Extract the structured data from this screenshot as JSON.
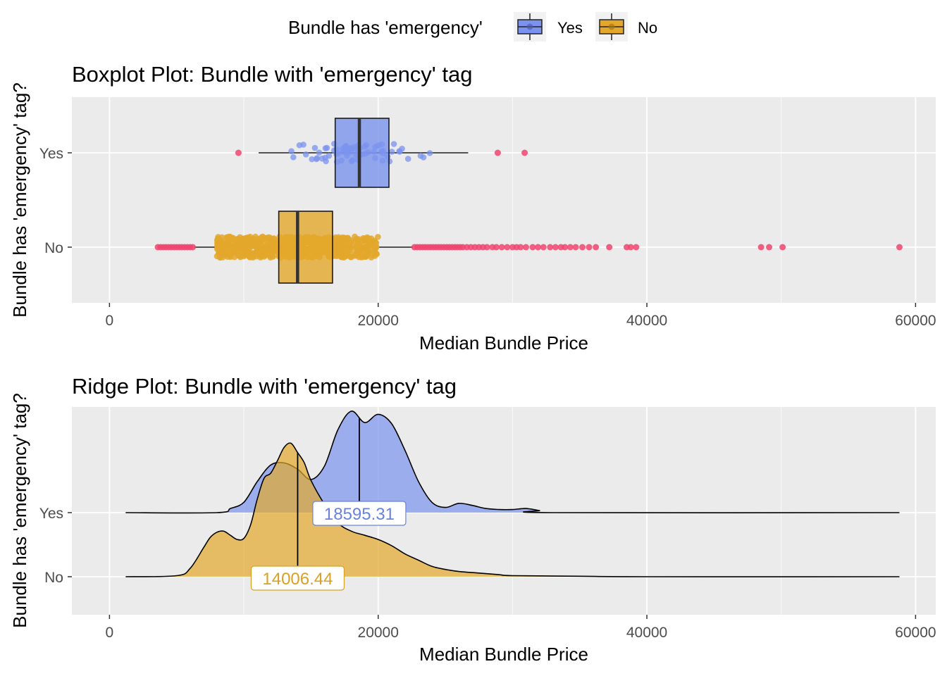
{
  "legend": {
    "title": "Bundle has 'emergency'",
    "placement": "top",
    "items": [
      {
        "label": "Yes",
        "color": "#7B93EE"
      },
      {
        "label": "No",
        "color": "#E3A82B"
      }
    ]
  },
  "colors": {
    "yes": "#7B93EE",
    "no": "#E3A82B",
    "outlier": "#F0446E",
    "panel": "#EBEBEB",
    "grid": "#FFFFFF",
    "label_yes": "#6A82E0",
    "label_no": "#D9A024"
  },
  "chart_data": [
    {
      "type": "boxplot",
      "title": "Boxplot Plot: Bundle with 'emergency' tag",
      "xlabel": "Median Bundle Price",
      "ylabel": "Bundle has 'emergency' tag?",
      "xlim": [
        -2800,
        61500
      ],
      "x_ticks": [
        0,
        20000,
        40000,
        60000
      ],
      "x_tick_labels": [
        "0",
        "20000",
        "40000",
        "60000"
      ],
      "categories": [
        "No",
        "Yes"
      ],
      "grid": true,
      "series": [
        {
          "name": "Yes",
          "whisker_low": 11100,
          "q1": 16800,
          "median": 18600,
          "q3": 20800,
          "whisker_high": 26700,
          "jitter_range": [
            13000,
            24300
          ],
          "outliers": [
            9600,
            28900,
            30900
          ]
        },
        {
          "name": "No",
          "whisker_low": 6300,
          "q1": 12600,
          "median": 14000,
          "q3": 16600,
          "whisker_high": 22600,
          "jitter_range": [
            8000,
            20000
          ],
          "outliers": [
            3600,
            3800,
            4000,
            4200,
            4400,
            4600,
            4800,
            5000,
            5200,
            5400,
            5600,
            5800,
            6000,
            6200,
            22700,
            22900,
            23100,
            23300,
            23500,
            23700,
            23900,
            24100,
            24300,
            24500,
            24700,
            24900,
            25100,
            25300,
            25500,
            25700,
            25900,
            26100,
            26300,
            26600,
            26900,
            27200,
            27500,
            27800,
            28100,
            28500,
            28800,
            29200,
            29600,
            30000,
            30300,
            30600,
            31000,
            31500,
            31900,
            32300,
            32800,
            33200,
            33600,
            33900,
            34300,
            34700,
            35200,
            35700,
            36200,
            37200,
            38500,
            38800,
            39200,
            48500,
            49100,
            50100,
            58800
          ]
        }
      ]
    },
    {
      "type": "ridge",
      "title": "Ridge Plot: Bundle with 'emergency' tag",
      "xlabel": "Median Bundle Price",
      "ylabel": "Bundle has 'emergency' tag?",
      "xlim": [
        -2800,
        61500
      ],
      "x_ticks": [
        0,
        20000,
        40000,
        60000
      ],
      "x_tick_labels": [
        "0",
        "20000",
        "40000",
        "60000"
      ],
      "categories": [
        "No",
        "Yes"
      ],
      "grid": true,
      "series": [
        {
          "name": "Yes",
          "median_label": "18595.31",
          "median": 18595.31,
          "x": [
            1200,
            8000,
            9000,
            10000,
            11000,
            12000,
            13000,
            14000,
            15000,
            16000,
            17000,
            18000,
            19000,
            20000,
            21000,
            22000,
            23000,
            24000,
            25000,
            26000,
            27000,
            28000,
            29000,
            30000,
            31000,
            32000,
            33000,
            58800
          ],
          "density": [
            0,
            0,
            0.04,
            0.1,
            0.3,
            0.46,
            0.48,
            0.42,
            0.32,
            0.45,
            0.8,
            0.98,
            0.87,
            0.95,
            0.86,
            0.6,
            0.3,
            0.1,
            0.05,
            0.09,
            0.07,
            0.04,
            0.03,
            0.03,
            0.04,
            0.02,
            0,
            0
          ]
        },
        {
          "name": "No",
          "median_label": "14006.44",
          "median": 14006.44,
          "x": [
            1200,
            5000,
            6000,
            7000,
            7500,
            8000,
            8500,
            9000,
            9500,
            10000,
            10500,
            11000,
            11500,
            12000,
            12500,
            13000,
            13500,
            14000,
            14500,
            15000,
            16000,
            17000,
            18000,
            19000,
            20000,
            21000,
            22000,
            23000,
            24000,
            25000,
            26000,
            27000,
            28000,
            29000,
            30000,
            35000,
            40000,
            58800
          ],
          "density": [
            0,
            0.01,
            0.08,
            0.28,
            0.38,
            0.43,
            0.44,
            0.4,
            0.36,
            0.37,
            0.5,
            0.75,
            0.95,
            1.0,
            1.12,
            1.25,
            1.29,
            1.2,
            1.1,
            0.93,
            0.7,
            0.52,
            0.44,
            0.4,
            0.36,
            0.3,
            0.22,
            0.16,
            0.1,
            0.07,
            0.05,
            0.04,
            0.03,
            0.02,
            0.01,
            0.005,
            0,
            0
          ]
        }
      ]
    }
  ]
}
